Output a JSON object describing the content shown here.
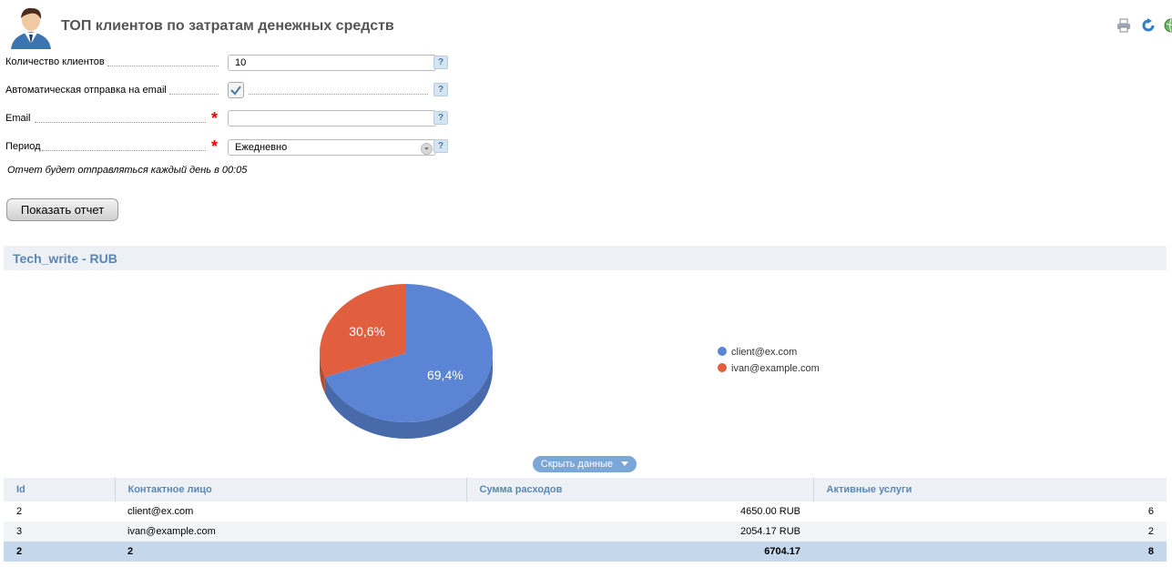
{
  "header": {
    "title": "ТОП клиентов по затратам денежных средств",
    "icons": [
      "user-avatar-icon",
      "print-icon",
      "refresh-icon",
      "globe-icon"
    ]
  },
  "form": {
    "clients_label": "Количество клиентов",
    "clients_value": "10",
    "auto_send_label": "Автоматическая отправка на email",
    "auto_send_checked": true,
    "email_label": "Email",
    "email_value": "",
    "period_label": "Период",
    "period_value": "Ежедневно",
    "required_mark": "*",
    "help_mark": "?",
    "note": "Отчет будет отправляться каждый день в 00:05",
    "submit_label": "Показать отчет"
  },
  "section": {
    "title": "Tech_write - RUB"
  },
  "chart_data": {
    "type": "pie",
    "categories": [
      "client@ex.com",
      "ivan@example.com"
    ],
    "values": [
      69.4,
      30.6
    ],
    "labels": [
      "69,4%",
      "30,6%"
    ],
    "colors": [
      "#5b84d4",
      "#e15e3e"
    ],
    "legend": "right"
  },
  "toggle_label": "Скрыть данные",
  "table": {
    "columns": [
      "Id",
      "Контактное лицо",
      "Сумма расходов",
      "Активные услуги"
    ],
    "rows": [
      [
        "2",
        "client@ex.com",
        "4650.00 RUB",
        "6"
      ],
      [
        "3",
        "ivan@example.com",
        "2054.17 RUB",
        "2"
      ]
    ],
    "total": [
      "2",
      "2",
      "6704.17",
      "8"
    ]
  }
}
